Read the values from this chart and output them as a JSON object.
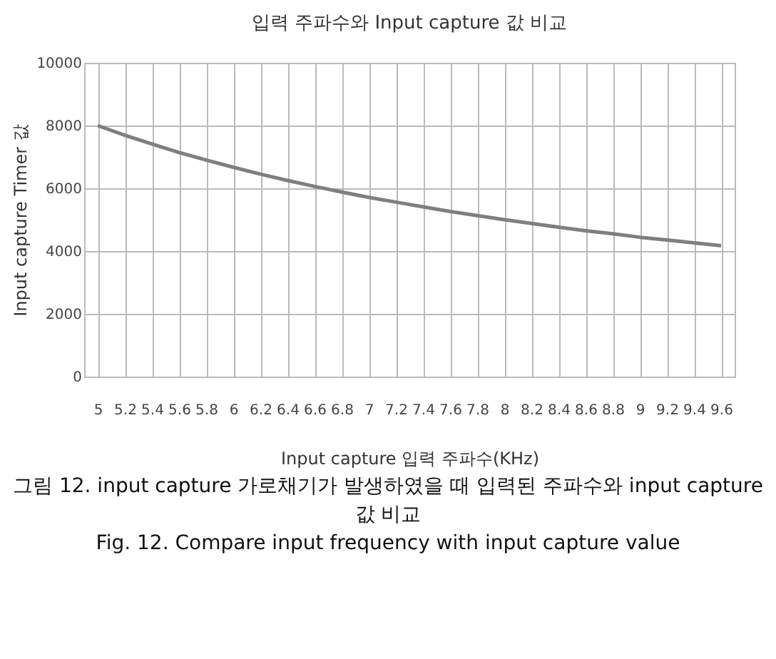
{
  "chart_data": {
    "type": "line",
    "title": "입력 주파수와 Input capture 값 비교",
    "xlabel": "Input capture 입력 주파수(KHz)",
    "ylabel": "Input capture Timer 값",
    "categories": [
      "5",
      "5.2",
      "5.4",
      "5.6",
      "5.8",
      "6",
      "6.2",
      "6.4",
      "6.6",
      "6.8",
      "7",
      "7.2",
      "7.4",
      "7.6",
      "7.8",
      "8",
      "8.2",
      "8.4",
      "8.6",
      "8.8",
      "9",
      "9.2",
      "9.4",
      "9.6"
    ],
    "series": [
      {
        "color": "#7f7f7f",
        "values": [
          8000,
          7690,
          7410,
          7140,
          6900,
          6670,
          6450,
          6250,
          6060,
          5880,
          5710,
          5560,
          5410,
          5260,
          5130,
          5000,
          4880,
          4760,
          4650,
          4550,
          4440,
          4350,
          4260,
          4170
        ]
      }
    ],
    "ylim": [
      0,
      10000
    ],
    "yticks": [
      0,
      2000,
      4000,
      6000,
      8000,
      10000
    ],
    "grid": true,
    "marker": "none",
    "line_style": "solid",
    "annotations": [
      "그림 12. input capture 가로채기가 발생하였을 때 입력된 주파수와 input capture 값 비교",
      "Fig. 12. Compare input frequency with input capture value"
    ]
  }
}
